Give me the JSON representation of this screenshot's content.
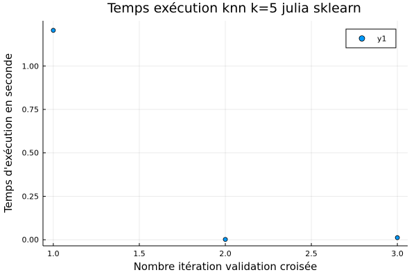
{
  "chart_data": {
    "type": "scatter",
    "title": "Temps exécution knn k=5 julia sklearn",
    "xlabel": "Nombre itération validation croisée",
    "ylabel": "Temps d'exécution en seconde",
    "xlim": [
      0.94,
      3.06
    ],
    "ylim": [
      -0.035,
      1.26
    ],
    "xticks": [
      1.0,
      1.5,
      2.0,
      2.5,
      3.0
    ],
    "xtick_labels": [
      "1.0",
      "1.5",
      "2.0",
      "2.5",
      "3.0"
    ],
    "yticks": [
      0.0,
      0.25,
      0.5,
      0.75,
      1.0
    ],
    "ytick_labels": [
      "0.00",
      "0.25",
      "0.50",
      "0.75",
      "1.00"
    ],
    "grid": true,
    "legend_position": "top-right",
    "series": [
      {
        "name": "y1",
        "color": "#009AFA",
        "x": [
          1,
          2,
          3
        ],
        "y": [
          1.205,
          0.002,
          0.012
        ]
      }
    ]
  }
}
